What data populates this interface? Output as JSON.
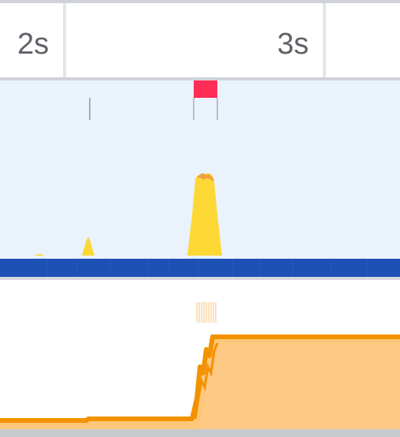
{
  "timeline": {
    "ticks": [
      {
        "label": "2s"
      },
      {
        "label": "3s"
      }
    ]
  },
  "colors": {
    "ruler_text": "#5f6368",
    "overview_bg": "#eaf2fc",
    "cpu_scripting": "#fdd835",
    "cpu_peak": "#f0a040",
    "long_task": "#ff2d55",
    "network": "#1e4fb5",
    "memory_line": "#f39200",
    "memory_fill": "#fdc77a"
  },
  "icons": {
    "frame_marker": "vertical-tick",
    "long_task_marker": "red-flag"
  }
}
